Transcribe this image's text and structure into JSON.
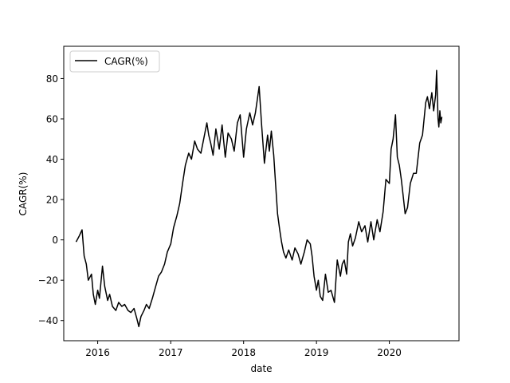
{
  "chart_data": {
    "type": "line",
    "xlabel": "date",
    "ylabel": "CAGR(%)",
    "x_ticks": [
      "2016",
      "2017",
      "2018",
      "2019",
      "2020"
    ],
    "y_ticks": [
      -40,
      -20,
      0,
      20,
      40,
      60,
      80
    ],
    "xlim": [
      "2015-07-15",
      "2020-12-15"
    ],
    "ylim": [
      -50,
      96
    ],
    "legend": {
      "position": "top-left",
      "entries": [
        "CAGR(%)"
      ]
    },
    "grid": false,
    "series": [
      {
        "name": "CAGR(%)",
        "color": "#000000",
        "x": [
          "2015-09-15",
          "2015-10-01",
          "2015-10-15",
          "2015-10-25",
          "2015-11-05",
          "2015-11-15",
          "2015-12-01",
          "2015-12-10",
          "2015-12-20",
          "2016-01-01",
          "2016-01-10",
          "2016-01-25",
          "2016-02-05",
          "2016-02-20",
          "2016-03-01",
          "2016-03-15",
          "2016-04-01",
          "2016-04-15",
          "2016-05-01",
          "2016-05-15",
          "2016-06-01",
          "2016-06-15",
          "2016-07-01",
          "2016-07-15",
          "2016-07-25",
          "2016-08-05",
          "2016-08-20",
          "2016-09-01",
          "2016-09-15",
          "2016-10-01",
          "2016-10-15",
          "2016-11-01",
          "2016-11-15",
          "2016-12-01",
          "2016-12-15",
          "2017-01-01",
          "2017-01-15",
          "2017-02-01",
          "2017-02-15",
          "2017-03-01",
          "2017-03-15",
          "2017-04-01",
          "2017-04-15",
          "2017-05-01",
          "2017-05-15",
          "2017-06-01",
          "2017-06-15",
          "2017-07-01",
          "2017-07-10",
          "2017-07-20",
          "2017-08-01",
          "2017-08-15",
          "2017-09-01",
          "2017-09-15",
          "2017-10-01",
          "2017-10-15",
          "2017-11-01",
          "2017-11-15",
          "2017-12-01",
          "2017-12-15",
          "2018-01-01",
          "2018-01-15",
          "2018-02-01",
          "2018-02-15",
          "2018-03-01",
          "2018-03-10",
          "2018-03-20",
          "2018-04-01",
          "2018-04-15",
          "2018-05-01",
          "2018-05-10",
          "2018-05-20",
          "2018-06-01",
          "2018-06-10",
          "2018-06-20",
          "2018-07-01",
          "2018-07-10",
          "2018-07-20",
          "2018-08-01",
          "2018-08-15",
          "2018-09-01",
          "2018-09-15",
          "2018-10-01",
          "2018-10-15",
          "2018-11-01",
          "2018-11-15",
          "2018-12-01",
          "2018-12-10",
          "2018-12-20",
          "2019-01-01",
          "2019-01-10",
          "2019-01-20",
          "2019-02-01",
          "2019-02-15",
          "2019-03-01",
          "2019-03-15",
          "2019-04-01",
          "2019-04-15",
          "2019-05-01",
          "2019-05-10",
          "2019-05-20",
          "2019-06-01",
          "2019-06-10",
          "2019-06-20",
          "2019-07-01",
          "2019-07-15",
          "2019-08-01",
          "2019-08-15",
          "2019-09-01",
          "2019-09-15",
          "2019-10-01",
          "2019-10-15",
          "2019-11-01",
          "2019-11-15",
          "2019-12-01",
          "2019-12-15",
          "2020-01-01",
          "2020-01-10",
          "2020-01-20",
          "2020-02-01",
          "2020-02-10",
          "2020-02-20",
          "2020-03-01",
          "2020-03-10",
          "2020-03-20",
          "2020-04-01",
          "2020-04-15",
          "2020-05-01",
          "2020-05-15",
          "2020-06-01",
          "2020-06-15",
          "2020-07-01",
          "2020-07-10",
          "2020-07-20",
          "2020-08-01",
          "2020-08-10",
          "2020-08-20",
          "2020-08-25",
          "2020-09-01",
          "2020-09-05",
          "2020-09-10",
          "2020-09-15",
          "2020-09-20"
        ],
        "y": [
          -1,
          2,
          5,
          -8,
          -12,
          -20,
          -17,
          -27,
          -32,
          -25,
          -29,
          -13,
          -23,
          -30,
          -27,
          -33,
          -35,
          -31,
          -33,
          -32,
          -35,
          -36,
          -34,
          -39,
          -43,
          -38,
          -35,
          -32,
          -34,
          -29,
          -24,
          -18,
          -16,
          -12,
          -6,
          -2,
          6,
          12,
          18,
          28,
          37,
          43,
          40,
          49,
          45,
          43,
          50,
          58,
          52,
          48,
          42,
          55,
          45,
          57,
          41,
          53,
          50,
          44,
          58,
          62,
          41,
          55,
          63,
          57,
          63,
          69,
          76,
          57,
          38,
          52,
          44,
          54,
          42,
          28,
          13,
          5,
          -1,
          -6,
          -9,
          -5,
          -10,
          -4,
          -7,
          -12,
          -6,
          0,
          -2,
          -8,
          -18,
          -25,
          -20,
          -28,
          -30,
          -17,
          -26,
          -25,
          -31,
          -10,
          -18,
          -12,
          -10,
          -17,
          -1,
          3,
          -3,
          1,
          9,
          4,
          7,
          -1,
          9,
          0,
          10,
          4,
          14,
          30,
          28,
          45,
          50,
          62,
          41,
          37,
          30,
          22,
          13,
          16,
          28,
          33,
          33,
          48,
          52,
          68,
          71,
          65,
          73,
          64,
          72,
          84,
          60,
          56,
          64,
          58,
          61
        ]
      }
    ]
  }
}
